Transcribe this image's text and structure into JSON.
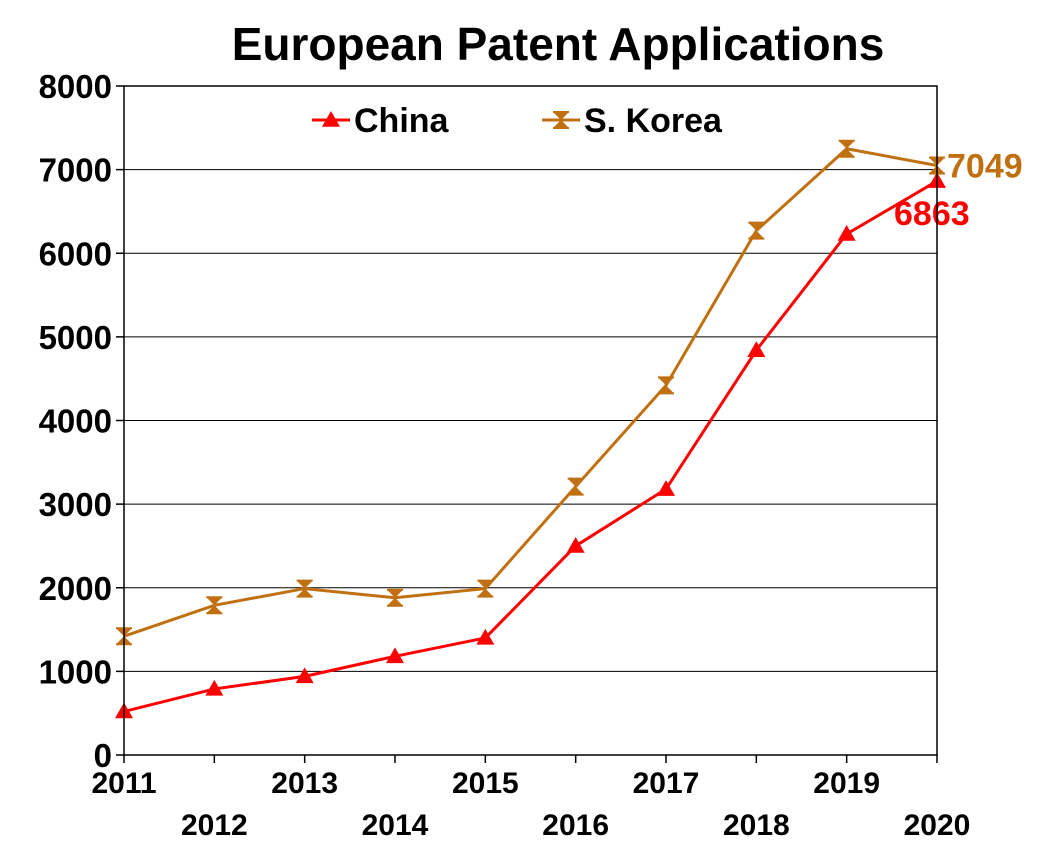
{
  "chart_data": {
    "type": "line",
    "title": "European Patent Applications",
    "xlabel": "",
    "ylabel": "",
    "categories": [
      "2011",
      "2012",
      "2013",
      "2014",
      "2015",
      "2016",
      "2017",
      "2018",
      "2019",
      "2020"
    ],
    "ylim": [
      0,
      8000
    ],
    "yticks": [
      "0",
      "1000",
      "2000",
      "3000",
      "4000",
      "5000",
      "6000",
      "7000",
      "8000"
    ],
    "grid": true,
    "legend_position": "top",
    "series": [
      {
        "name": "China",
        "color": "#ff0000",
        "marker": "triangle",
        "values": [
          520,
          790,
          940,
          1180,
          1400,
          2500,
          3180,
          4840,
          6230,
          6863
        ],
        "end_label": "6863"
      },
      {
        "name": "S. Korea",
        "color": "#c07010",
        "marker": "hourglass",
        "values": [
          1420,
          1790,
          1990,
          1880,
          1990,
          3210,
          4420,
          6270,
          7250,
          7049
        ],
        "end_label": "7049"
      }
    ]
  }
}
